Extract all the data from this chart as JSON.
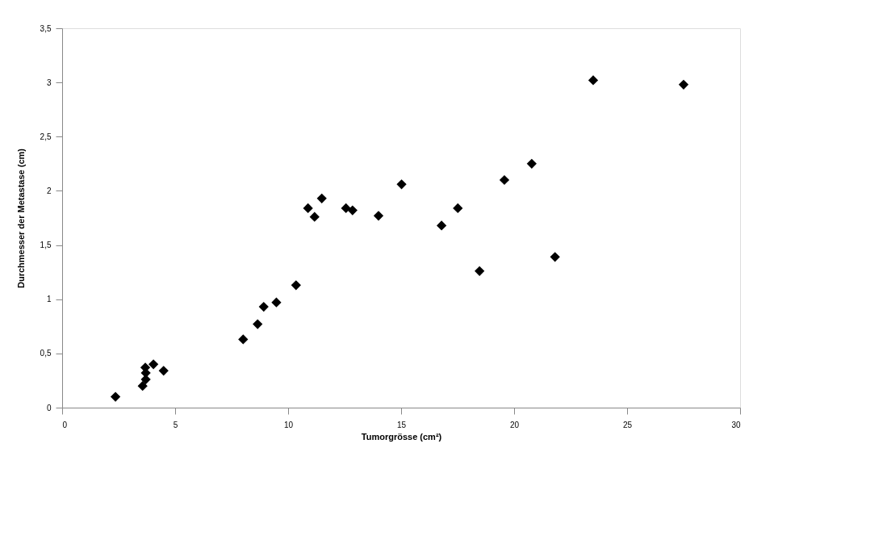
{
  "chart_data": {
    "type": "scatter",
    "xlabel": "Tumorgrösse (cm²)",
    "ylabel": "Durchmesser der Metastase (cm)",
    "x": [
      2.36,
      3.56,
      3.7,
      3.7,
      3.68,
      4.04,
      4.49,
      8.01,
      8.65,
      8.92,
      9.48,
      10.35,
      10.88,
      11.17,
      11.49,
      12.56,
      12.85,
      14.0,
      15.02,
      16.79,
      17.51,
      18.47,
      19.57,
      20.78,
      21.81,
      23.5,
      27.5
    ],
    "series": [
      {
        "color": "#000000",
        "values": [
          0.1,
          0.2,
          0.26,
          0.32,
          0.37,
          0.4,
          0.34,
          0.63,
          0.77,
          0.93,
          0.97,
          1.13,
          1.84,
          1.76,
          1.93,
          1.84,
          1.82,
          1.77,
          2.06,
          1.68,
          1.84,
          1.26,
          2.1,
          2.25,
          1.39,
          3.02,
          2.98
        ]
      }
    ],
    "xlim": [
      0,
      30
    ],
    "xticks": [
      0,
      5,
      10,
      15,
      20,
      25,
      30
    ],
    "ylim": [
      0,
      3.5
    ],
    "yticks": [
      0,
      {
        "value": 0.5,
        "label": "0,5"
      },
      1,
      {
        "value": 1.5,
        "label": "1,5"
      },
      2,
      {
        "value": 2.5,
        "label": "2,5"
      },
      3,
      {
        "value": 3.5,
        "label": "3,5"
      }
    ],
    "marker": "diamond",
    "grid": false,
    "legend": false
  }
}
